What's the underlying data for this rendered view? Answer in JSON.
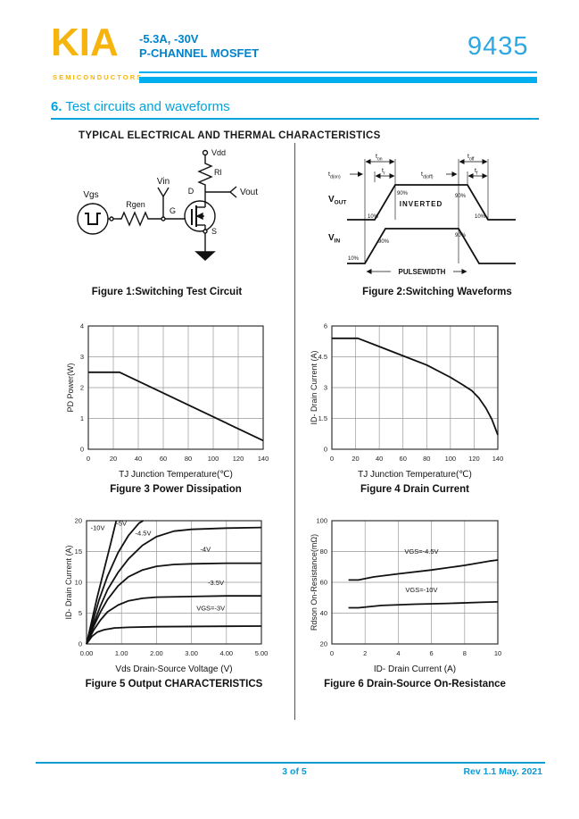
{
  "header": {
    "logo": "KIA",
    "logo_sub": "SEMICONDUCTORS",
    "spec_line1": "-5.3A,  -30V",
    "spec_line2": "P-CHANNEL MOSFET",
    "part_number": "9435",
    "accent_color": "#00AEEF",
    "logo_color": "#F6B40E",
    "spec_text_color": "#0083CB",
    "part_number_color": "#2FA7DF"
  },
  "section": {
    "number": "6.",
    "title": " Test circuits and waveforms"
  },
  "content_heading": "TYPICAL ELECTRICAL AND THERMAL CHARACTERISTICS",
  "figure1": {
    "caption": "Figure 1:Switching Test Circuit",
    "labels": {
      "vgs": "Vgs",
      "rgen": "Rgen",
      "vin": "Vin",
      "g": "G",
      "d": "D",
      "s": "S",
      "rl": "Rl",
      "vdd": "Vdd",
      "vout": "Vout"
    }
  },
  "figure2": {
    "caption": "Figure 2:Switching Waveforms",
    "labels": {
      "td_on": {
        "base": "t",
        "sub": "d(on)"
      },
      "t_on": {
        "base": "t",
        "sub": "on"
      },
      "t_r": {
        "base": "t",
        "sub": "r"
      },
      "td_off": {
        "base": "t",
        "sub": "d(off)"
      },
      "t_off": {
        "base": "t",
        "sub": "off"
      },
      "t_f": {
        "base": "t",
        "sub": "f"
      },
      "v_out": {
        "base": "V",
        "sub": "OUT"
      },
      "v_in": {
        "base": "V",
        "sub": "IN"
      },
      "inverted": "INVERTED",
      "pulsewidth": "PULSEWIDTH",
      "p90": "90%",
      "p10": "10%"
    }
  },
  "chart_data": [
    {
      "id": "fig3",
      "type": "line",
      "caption": "Figure 3 Power Dissipation",
      "xlabel": "TJ Junction Temperature(℃)",
      "ylabel": "PD  Power(W)",
      "xlim": [
        0,
        140
      ],
      "ylim": [
        0,
        4
      ],
      "xticks": [
        0,
        20,
        40,
        60,
        80,
        100,
        120,
        140
      ],
      "yticks": [
        0,
        1,
        2,
        3,
        4
      ],
      "grid": true,
      "series": [
        {
          "name": "power-dissipation",
          "points": [
            [
              0,
              2.5
            ],
            [
              25,
              2.5
            ],
            [
              140,
              0.28
            ]
          ]
        }
      ],
      "labels": []
    },
    {
      "id": "fig4",
      "type": "line",
      "caption": "Figure 4 Drain Current",
      "xlabel": "TJ Junction Temperature(℃)",
      "ylabel": "ID- Drain Current (A)",
      "xlim": [
        0,
        140
      ],
      "ylim": [
        0,
        6
      ],
      "xticks": [
        0,
        20,
        40,
        60,
        80,
        100,
        120,
        140
      ],
      "yticks": [
        0,
        1.5,
        3,
        4.5,
        6
      ],
      "grid": true,
      "series": [
        {
          "name": "drain-current",
          "points": [
            [
              0,
              5.4
            ],
            [
              22,
              5.4
            ],
            [
              40,
              5.0
            ],
            [
              60,
              4.55
            ],
            [
              80,
              4.1
            ],
            [
              100,
              3.5
            ],
            [
              110,
              3.15
            ],
            [
              118,
              2.85
            ],
            [
              124,
              2.5
            ],
            [
              130,
              2.0
            ],
            [
              135,
              1.45
            ],
            [
              140,
              0.7
            ]
          ]
        }
      ],
      "labels": []
    },
    {
      "id": "fig5",
      "type": "line",
      "caption": "Figure 5 Output CHARACTERISTICS",
      "xlabel": "Vds Drain-Source Voltage (V)",
      "ylabel": "ID- Drain Current (A)",
      "xlim": [
        0,
        5
      ],
      "ylim": [
        0,
        20
      ],
      "xticks": [
        0,
        1,
        2,
        3,
        4,
        5
      ],
      "xtick_labels": [
        "0.00",
        "1.00",
        "2.00",
        "3.00",
        "4.00",
        "5.00"
      ],
      "yticks": [
        0,
        5,
        10,
        15,
        20
      ],
      "grid": true,
      "series": [
        {
          "name": "vgs-10v",
          "points": [
            [
              0,
              0
            ],
            [
              0.12,
              3
            ],
            [
              0.3,
              7.5
            ],
            [
              0.5,
              12
            ],
            [
              0.7,
              16.5
            ],
            [
              0.85,
              20
            ]
          ]
        },
        {
          "name": "vgs-5v",
          "points": [
            [
              0,
              0
            ],
            [
              0.15,
              3
            ],
            [
              0.35,
              7
            ],
            [
              0.6,
              11
            ],
            [
              0.9,
              14.8
            ],
            [
              1.2,
              17.6
            ],
            [
              1.5,
              19.6
            ],
            [
              1.62,
              20
            ]
          ]
        },
        {
          "name": "vgs-4.5v",
          "points": [
            [
              0,
              0
            ],
            [
              0.2,
              3.2
            ],
            [
              0.4,
              6.2
            ],
            [
              0.6,
              8.8
            ],
            [
              0.9,
              11.6
            ],
            [
              1.2,
              13.8
            ],
            [
              1.6,
              16
            ],
            [
              2.0,
              17.4
            ],
            [
              2.5,
              18.3
            ],
            [
              3.0,
              18.6
            ],
            [
              4.0,
              18.8
            ],
            [
              5.0,
              18.9
            ]
          ]
        },
        {
          "name": "vgs-4v",
          "points": [
            [
              0,
              0
            ],
            [
              0.2,
              2.8
            ],
            [
              0.4,
              5.2
            ],
            [
              0.6,
              7.2
            ],
            [
              0.9,
              9.4
            ],
            [
              1.2,
              10.9
            ],
            [
              1.6,
              12
            ],
            [
              2.0,
              12.6
            ],
            [
              2.5,
              12.9
            ],
            [
              3.0,
              13.0
            ],
            [
              4.0,
              13.1
            ],
            [
              5.0,
              13.1
            ]
          ]
        },
        {
          "name": "vgs-3.5v",
          "points": [
            [
              0,
              0
            ],
            [
              0.2,
              2.2
            ],
            [
              0.4,
              3.9
            ],
            [
              0.6,
              5.2
            ],
            [
              0.9,
              6.3
            ],
            [
              1.2,
              7.0
            ],
            [
              1.6,
              7.4
            ],
            [
              2.0,
              7.6
            ],
            [
              3.0,
              7.7
            ],
            [
              4.0,
              7.8
            ],
            [
              5.0,
              7.8
            ]
          ]
        },
        {
          "name": "vgs-3v",
          "points": [
            [
              0,
              0
            ],
            [
              0.15,
              1.2
            ],
            [
              0.3,
              1.9
            ],
            [
              0.5,
              2.3
            ],
            [
              0.8,
              2.6
            ],
            [
              1.2,
              2.7
            ],
            [
              2.0,
              2.8
            ],
            [
              3.5,
              2.85
            ],
            [
              5.0,
              2.9
            ]
          ]
        }
      ],
      "labels": [
        {
          "text": "-10V",
          "x": 0.32,
          "y": 18.5
        },
        {
          "text": "-5V",
          "x": 1.0,
          "y": 19.2
        },
        {
          "text": "-4.5V",
          "x": 1.62,
          "y": 17.6
        },
        {
          "text": "-4V",
          "x": 3.4,
          "y": 15.0
        },
        {
          "text": "-3.5V",
          "x": 3.7,
          "y": 9.6
        },
        {
          "text": "VGS=-3V",
          "x": 3.55,
          "y": 5.4
        }
      ]
    },
    {
      "id": "fig6",
      "type": "line",
      "caption": "Figure 6 Drain-Source On-Resistance",
      "xlabel": "ID- Drain Current (A)",
      "ylabel": "Rdson On-Resistance(mΩ)",
      "xlim": [
        0,
        10
      ],
      "ylim": [
        20,
        100
      ],
      "xticks": [
        0,
        2,
        4,
        6,
        8,
        10
      ],
      "yticks": [
        20,
        40,
        60,
        80,
        100
      ],
      "grid": true,
      "series": [
        {
          "name": "vgs-4.5v",
          "points": [
            [
              1,
              61.5
            ],
            [
              1.6,
              61.5
            ],
            [
              2.5,
              63.5
            ],
            [
              4,
              65.5
            ],
            [
              6,
              68
            ],
            [
              8,
              71
            ],
            [
              9.5,
              73.8
            ],
            [
              10,
              74.5
            ]
          ]
        },
        {
          "name": "vgs-10v",
          "points": [
            [
              1,
              43.5
            ],
            [
              1.6,
              43.5
            ],
            [
              3,
              45
            ],
            [
              5,
              45.8
            ],
            [
              7,
              46.3
            ],
            [
              9,
              47
            ],
            [
              10,
              47.3
            ]
          ]
        }
      ],
      "labels": [
        {
          "text": "VGS=-4.5V",
          "x": 5.4,
          "y": 78.5
        },
        {
          "text": "VGS=-10V",
          "x": 5.4,
          "y": 53.5
        }
      ]
    }
  ],
  "footer": {
    "page_info": "3 of 5",
    "revision": "Rev 1.1 May. 2021",
    "footer_color": "#0C9BD8"
  }
}
